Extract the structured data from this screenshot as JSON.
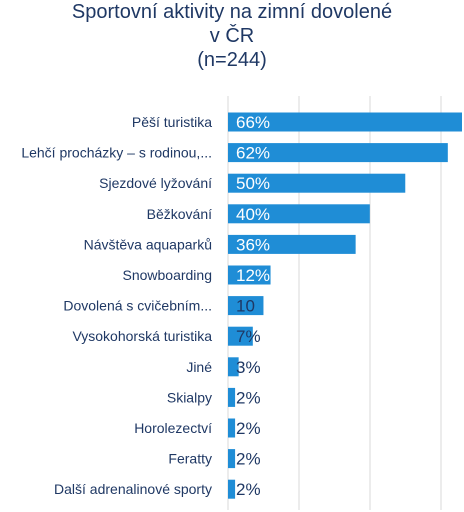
{
  "chart_data": {
    "type": "bar",
    "orientation": "horizontal",
    "title_lines": [
      "Sportovní aktivity na zimní dovolené",
      "v ČR",
      "(n=244)"
    ],
    "categories": [
      "Pěší turistika",
      "Lehčí procházky – s rodinou,...",
      "Sjezdové lyžování",
      "Běžkování",
      "Návštěva aquaparků",
      "Snowboarding",
      "Dovolená s cvičebním...",
      "Vysokohorská turistika",
      "Jiné",
      "Skialpy",
      "Horolezectví",
      "Feratty",
      "Další adrenalinové sporty"
    ],
    "values": [
      66,
      62,
      50,
      40,
      36,
      12,
      10,
      7,
      3,
      2,
      2,
      2,
      2
    ],
    "data_labels": [
      "66%",
      "62%",
      "50%",
      "40%",
      "36%",
      "12%",
      "10",
      "7%",
      "3%",
      "2%",
      "2%",
      "2%",
      "2%"
    ],
    "xlim": [
      0,
      66
    ],
    "grid": true,
    "bar_color": "#1f8dd6",
    "text_color": "#1f3864",
    "grid_color": "#d9d9d9"
  }
}
